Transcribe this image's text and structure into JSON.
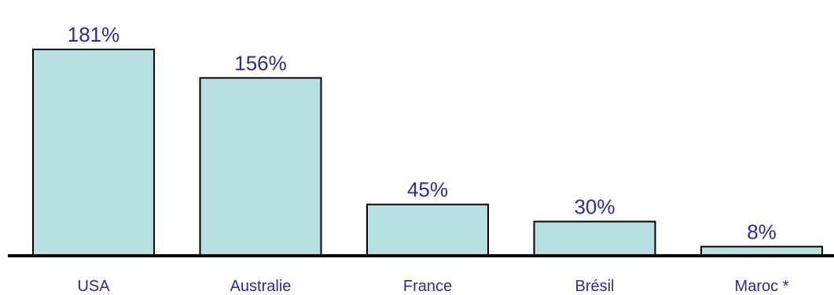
{
  "chart_data": {
    "type": "bar",
    "categories": [
      "USA",
      "Australie",
      "France",
      "Brésil",
      "Maroc *"
    ],
    "values": [
      181,
      156,
      45,
      30,
      8
    ],
    "value_labels": [
      "181%",
      "156%",
      "45%",
      "30%",
      "8%"
    ],
    "title": "",
    "xlabel": "",
    "ylabel": "",
    "ylim": [
      0,
      181
    ],
    "grid": false,
    "colors": {
      "bar_fill": "#b8e0e2",
      "bar_stroke": "#000000",
      "label_text": "#2b2b9a",
      "axis": "#000000"
    }
  }
}
